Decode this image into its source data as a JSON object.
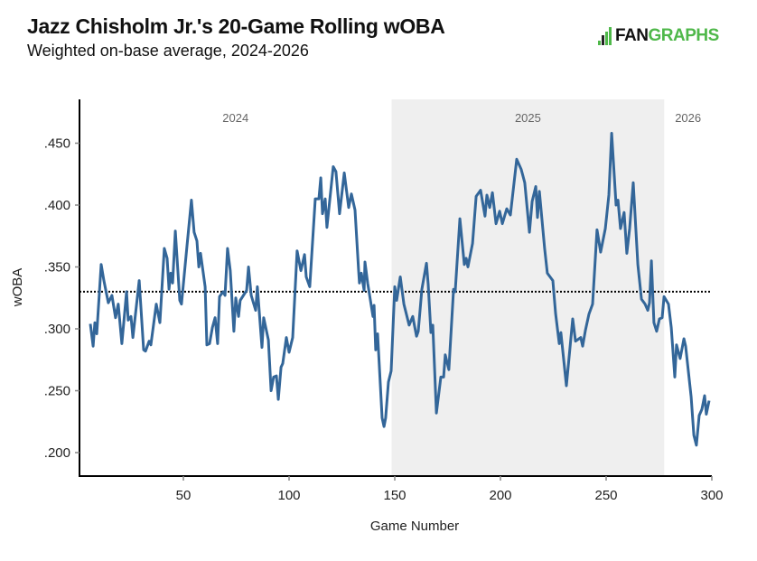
{
  "header": {
    "title": "Jazz Chisholm Jr.'s 20-Game Rolling wOBA",
    "subtitle": "Weighted on-base average, 2024-2026",
    "logo_fan": "FAN",
    "logo_graphs": "GRAPHS",
    "logo_color": "#4fb84a"
  },
  "chart_data": {
    "type": "line",
    "title": "Jazz Chisholm Jr.'s 20-Game Rolling wOBA",
    "subtitle": "Weighted on-base average, 2024-2026",
    "xlabel": "Game Number",
    "ylabel": "wOBA",
    "xlim": [
      0,
      300
    ],
    "ylim": [
      0.182,
      0.486
    ],
    "x_ticks": [
      50,
      100,
      150,
      200,
      250,
      300
    ],
    "x_tick_labels": [
      "50",
      "100",
      "150",
      "200",
      "250",
      "300"
    ],
    "y_ticks": [
      0.2,
      0.25,
      0.3,
      0.35,
      0.4,
      0.45
    ],
    "y_tick_labels": [
      ".200",
      ".250",
      ".300",
      ".350",
      ".400",
      ".450"
    ],
    "grid": false,
    "line_color": "#336699",
    "reference_line": {
      "value": 0.33,
      "style": "dotted",
      "color": "#000000"
    },
    "seasons": [
      {
        "label": "2024",
        "start": 0,
        "end": 148.5,
        "shaded": false
      },
      {
        "label": "2025",
        "start": 148.5,
        "end": 277.5,
        "shaded": true,
        "color": "#efefef"
      },
      {
        "label": "2026",
        "start": 277.5,
        "end": 300,
        "shaded": false
      }
    ],
    "series": [
      {
        "name": "20-Game Rolling wOBA",
        "x": [
          6.0,
          7.3,
          8.1,
          9.0,
          11.1,
          12.4,
          14.5,
          16.2,
          17.9,
          19.2,
          20.9,
          23.1,
          23.9,
          25.2,
          26.1,
          29.1,
          31.2,
          32.1,
          33.8,
          34.6,
          37.2,
          38.9,
          41.0,
          42.3,
          43.2,
          44.0,
          44.9,
          46.2,
          48.3,
          49.1,
          51.7,
          53.8,
          55.1,
          56.4,
          57.3,
          58.1,
          60.3,
          61.1,
          62.4,
          63.7,
          65.0,
          66.2,
          67.1,
          68.8,
          69.7,
          70.9,
          72.2,
          73.9,
          74.8,
          76.1,
          76.9,
          79.9,
          80.8,
          82.1,
          84.2,
          85.0,
          87.2,
          88.0,
          90.2,
          91.5,
          92.7,
          94.0,
          94.9,
          96.2,
          97.0,
          98.7,
          100.0,
          101.7,
          103.8,
          105.6,
          107.3,
          108.1,
          109.8,
          112.4,
          114.1,
          115.0,
          115.8,
          117.1,
          117.9,
          120.9,
          122.2,
          123.9,
          126.1,
          128.2,
          129.5,
          131.2,
          132.9,
          133.3,
          134.2,
          135.5,
          135.9,
          137.2,
          139.7,
          140.2,
          141.0,
          141.9,
          144.0,
          144.9,
          145.7,
          147.0,
          148.3,
          150.0,
          150.9,
          152.6,
          154.3,
          156.8,
          158.5,
          160.3,
          161.1,
          162.8,
          165.0,
          165.8,
          167.1,
          168.0,
          169.7,
          171.8,
          173.1,
          173.9,
          175.6,
          177.8,
          178.6,
          180.8,
          182.9,
          183.8,
          184.6,
          186.8,
          188.5,
          190.6,
          192.7,
          193.6,
          194.9,
          196.2,
          197.9,
          199.6,
          200.9,
          203.0,
          204.7,
          207.7,
          209.8,
          211.5,
          213.7,
          215.0,
          216.7,
          217.5,
          218.4,
          220.9,
          222.2,
          224.8,
          226.1,
          227.8,
          228.6,
          231.2,
          234.2,
          235.5,
          238.0,
          238.9,
          240.2,
          241.9,
          243.6,
          245.7,
          247.4,
          249.6,
          251.3,
          252.6,
          254.7,
          255.6,
          256.8,
          258.5,
          259.8,
          261.1,
          262.8,
          265.0,
          266.7,
          268.4,
          269.7,
          270.5,
          271.4,
          272.6,
          273.9,
          275.2,
          276.5,
          277.4,
          279.5,
          280.8,
          282.5,
          283.3,
          285.0,
          286.8,
          287.6,
          290.2,
          291.5,
          292.7,
          294.0,
          295.3,
          296.6,
          297.4,
          298.7
        ],
        "y": [
          0.304,
          0.286,
          0.305,
          0.296,
          0.352,
          0.339,
          0.321,
          0.327,
          0.309,
          0.32,
          0.288,
          0.33,
          0.307,
          0.31,
          0.293,
          0.339,
          0.283,
          0.282,
          0.29,
          0.287,
          0.32,
          0.305,
          0.365,
          0.357,
          0.332,
          0.345,
          0.337,
          0.379,
          0.323,
          0.32,
          0.367,
          0.404,
          0.378,
          0.371,
          0.35,
          0.361,
          0.334,
          0.287,
          0.288,
          0.301,
          0.309,
          0.288,
          0.326,
          0.33,
          0.327,
          0.365,
          0.347,
          0.298,
          0.325,
          0.31,
          0.323,
          0.331,
          0.35,
          0.327,
          0.315,
          0.334,
          0.285,
          0.309,
          0.291,
          0.25,
          0.261,
          0.262,
          0.243,
          0.269,
          0.272,
          0.293,
          0.281,
          0.293,
          0.363,
          0.347,
          0.36,
          0.342,
          0.334,
          0.405,
          0.405,
          0.422,
          0.393,
          0.405,
          0.382,
          0.431,
          0.427,
          0.393,
          0.426,
          0.398,
          0.409,
          0.396,
          0.347,
          0.337,
          0.345,
          0.331,
          0.354,
          0.337,
          0.31,
          0.319,
          0.283,
          0.296,
          0.228,
          0.221,
          0.228,
          0.257,
          0.266,
          0.334,
          0.323,
          0.342,
          0.32,
          0.303,
          0.31,
          0.294,
          0.298,
          0.332,
          0.353,
          0.336,
          0.297,
          0.303,
          0.232,
          0.261,
          0.261,
          0.279,
          0.267,
          0.332,
          0.33,
          0.389,
          0.352,
          0.357,
          0.35,
          0.369,
          0.407,
          0.412,
          0.391,
          0.408,
          0.398,
          0.41,
          0.385,
          0.395,
          0.385,
          0.397,
          0.392,
          0.437,
          0.429,
          0.418,
          0.378,
          0.403,
          0.415,
          0.39,
          0.411,
          0.365,
          0.345,
          0.339,
          0.312,
          0.288,
          0.297,
          0.254,
          0.308,
          0.29,
          0.293,
          0.286,
          0.299,
          0.312,
          0.32,
          0.38,
          0.362,
          0.381,
          0.408,
          0.458,
          0.4,
          0.404,
          0.381,
          0.394,
          0.361,
          0.381,
          0.418,
          0.352,
          0.324,
          0.32,
          0.315,
          0.321,
          0.355,
          0.305,
          0.298,
          0.308,
          0.309,
          0.326,
          0.32,
          0.301,
          0.261,
          0.287,
          0.276,
          0.292,
          0.286,
          0.245,
          0.214,
          0.206,
          0.23,
          0.235,
          0.246,
          0.231,
          0.242
        ]
      }
    ]
  }
}
